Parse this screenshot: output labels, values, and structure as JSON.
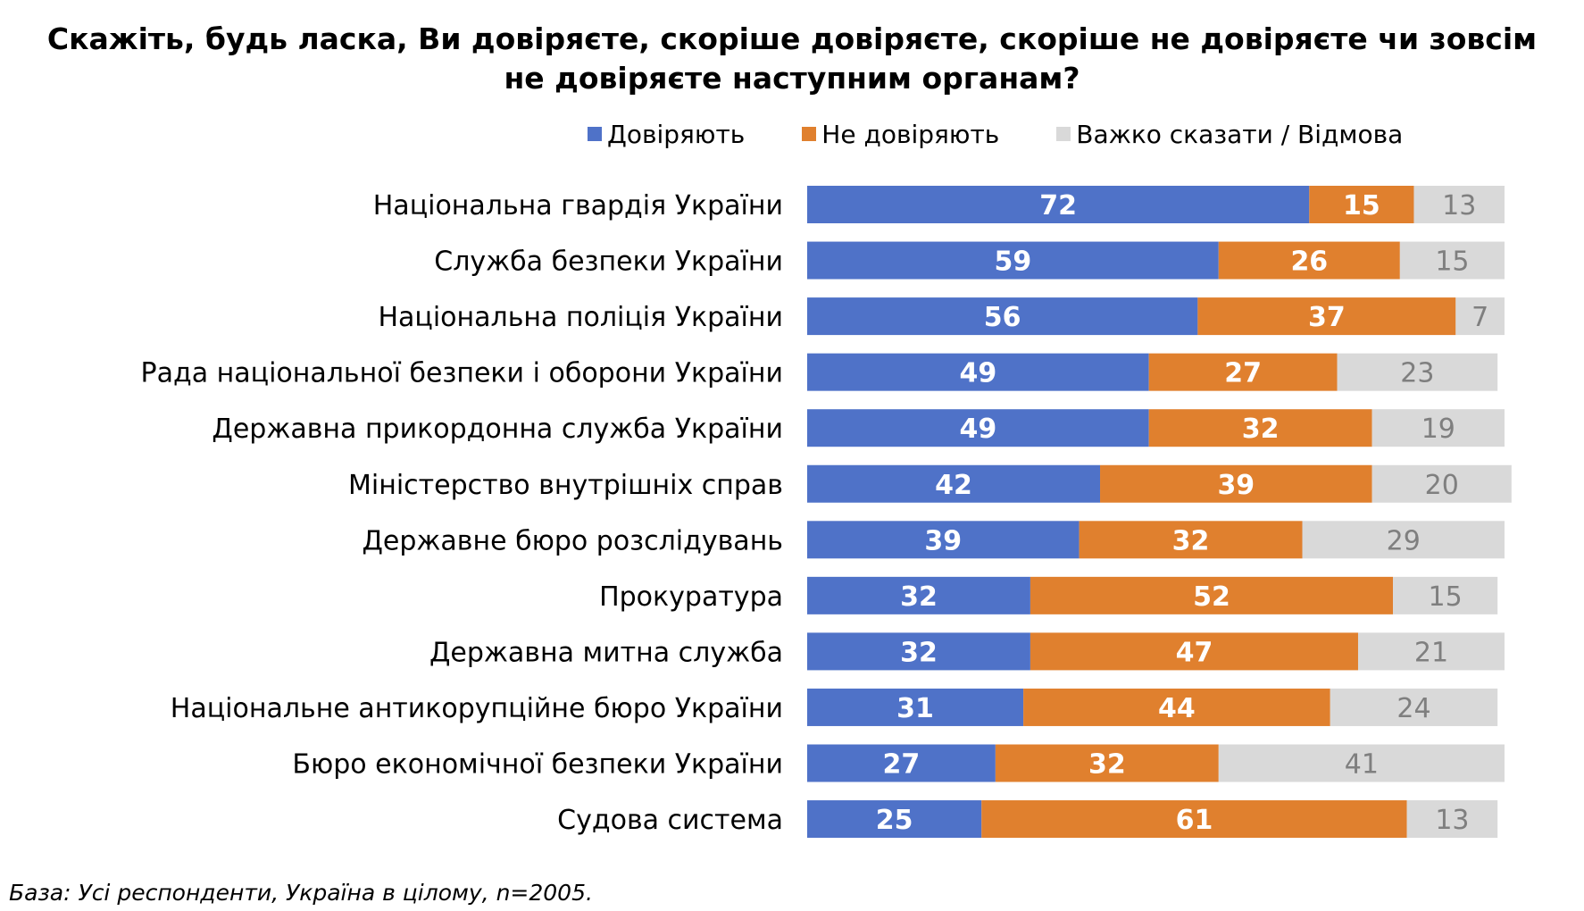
{
  "chart_data": {
    "type": "bar",
    "orientation": "horizontal",
    "stacked": true,
    "title": "Скажіть, будь ласка, Ви довіряєте, скоріше довіряєте, скоріше не довіряєте чи зовсім не довіряєте наступним органам?",
    "title_lines": [
      "Скажіть, будь ласка, Ви довіряєте, скоріше довіряєте, скоріше не довіряєте чи зовсім",
      "не довіряєте наступним органам?"
    ],
    "legend_position": "top",
    "grid": false,
    "xlim": [
      0,
      100
    ],
    "categories": [
      "Національна гвардія України",
      "Служба безпеки України",
      "Національна поліція України",
      "Рада національної безпеки і оборони України",
      "Державна прикордонна служба України",
      "Міністерство внутрішніх справ",
      "Державне бюро розслідувань",
      "Прокуратура",
      "Державна митна служба",
      "Національне антикорупційне бюро України ",
      "Бюро економічної безпеки України ",
      "Судова система"
    ],
    "series": [
      {
        "name": "Довіряють",
        "color": "#4F72C8",
        "label_color": "#ffffff",
        "values": [
          72,
          59,
          56,
          49,
          49,
          42,
          39,
          32,
          32,
          31,
          27,
          25
        ]
      },
      {
        "name": "Не довіряють",
        "color": "#E0802E",
        "label_color": "#ffffff",
        "values": [
          15,
          26,
          37,
          27,
          32,
          39,
          32,
          52,
          47,
          44,
          32,
          61
        ]
      },
      {
        "name": "Важко сказати / Відмова",
        "color": "#D9D9D9",
        "label_color": "#7F7F7F",
        "values": [
          13,
          15,
          7,
          23,
          19,
          20,
          29,
          15,
          21,
          24,
          41,
          13
        ]
      }
    ]
  },
  "footnote": "База: Усі респонденти, Україна в цілому, n=2005."
}
